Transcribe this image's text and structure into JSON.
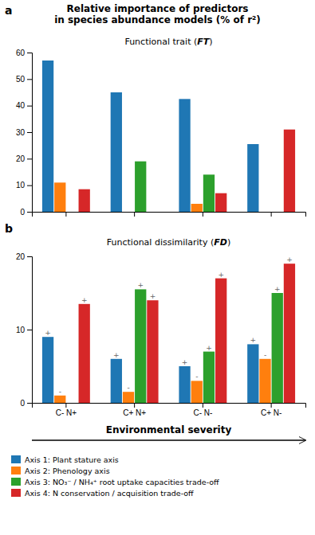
{
  "title": [
    "Relative importance of predictors",
    "in species abundance models (% of r²)"
  ],
  "chart_data": [
    {
      "type": "bar",
      "title": "Functional trait (FT)",
      "annotations": [
        "a"
      ],
      "categories": [
        "C- N+",
        "C+ N+",
        "C- N-",
        "C+ N-"
      ],
      "series": [
        {
          "values": [
            57,
            45,
            42.5,
            25.5
          ]
        },
        {
          "values": [
            11,
            0,
            3,
            0
          ]
        },
        {
          "values": [
            0,
            19,
            14,
            0
          ]
        },
        {
          "values": [
            8.5,
            0,
            7,
            31
          ]
        }
      ],
      "ylim": [
        0,
        60
      ],
      "yticks": [
        0,
        10,
        20,
        30,
        40,
        50,
        60
      ],
      "tick_labels": "y",
      "grid": false
    },
    {
      "type": "bar",
      "title": "Functional dissimilarity (FD)",
      "annotations": [
        "b"
      ],
      "xlabel": "Environmental severity",
      "categories": [
        "C- N+",
        "C+ N+",
        "C- N-",
        "C+ N-"
      ],
      "series": [
        {
          "name": "Axis 1: Plant stature axis",
          "values": [
            9,
            6,
            5,
            8
          ],
          "annotations": [
            "+",
            "+",
            "+",
            "+"
          ]
        },
        {
          "name": "Axis 2: Phenology axis",
          "values": [
            1,
            1.5,
            3,
            6
          ],
          "annotations": [
            "-",
            "-",
            "-",
            "-"
          ]
        },
        {
          "name": "Axis 3: NO₃⁻ / NH₄⁺ root uptake capacities trade-off",
          "values": [
            0,
            15.5,
            7,
            15
          ],
          "annotations": [
            null,
            "+",
            "+",
            "+"
          ]
        },
        {
          "name": "Axis 4: N conservation / acquisition trade-off",
          "values": [
            13.5,
            14,
            17,
            19
          ],
          "annotations": [
            "+",
            "+",
            "+",
            "+"
          ]
        }
      ],
      "ylim": [
        0,
        20
      ],
      "yticks": [
        0,
        10,
        20
      ],
      "legend": "bottom",
      "grid": false
    }
  ]
}
